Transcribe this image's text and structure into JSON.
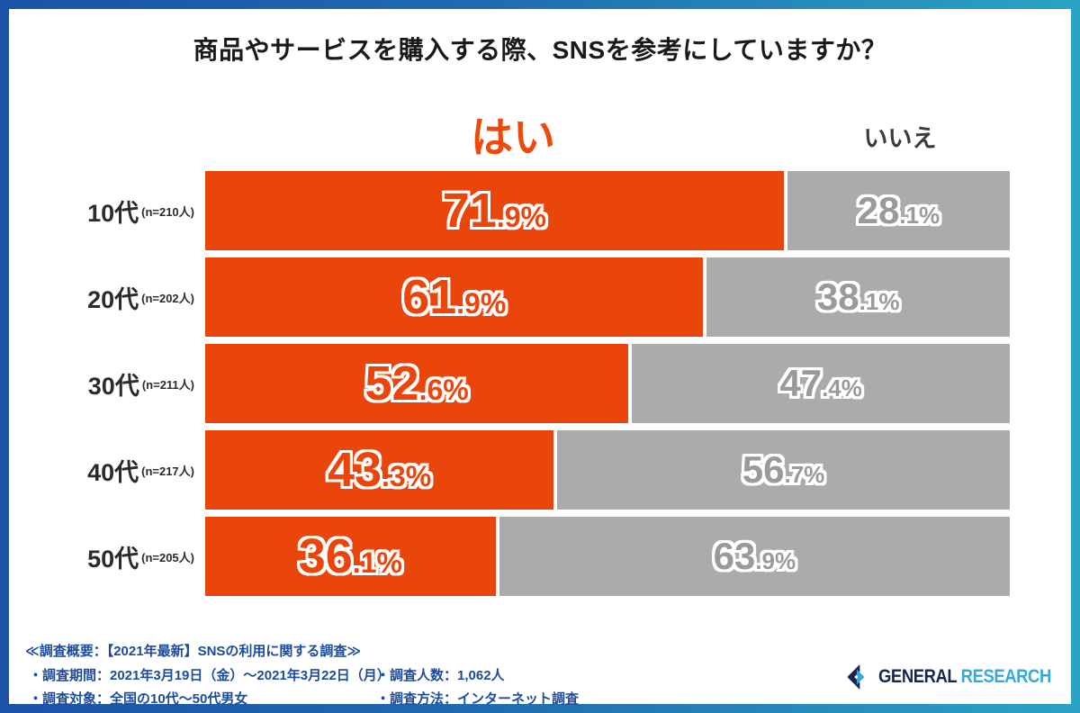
{
  "title": "商品やサービスを購入する際、SNSを参考にしていますか？",
  "legend": {
    "yes": "はい",
    "no": "いいえ"
  },
  "colors": {
    "yes_bar": "#ea450b",
    "no_bar": "#ababab",
    "yes_legend_text": "#ed4a0d",
    "no_legend_text": "#3c3c3c",
    "footer_text": "#1c4b9c",
    "frame_gradient_left": "#1b52a8",
    "frame_gradient_right": "#2ba4c4",
    "logo_navy": "#1b2550",
    "logo_blue": "#36a9dc"
  },
  "chart_data": {
    "type": "bar",
    "orientation": "horizontal",
    "stacked": true,
    "title": "商品やサービスを購入する際、SNSを参考にしていますか？",
    "categories": [
      "10代",
      "20代",
      "30代",
      "40代",
      "50代"
    ],
    "sample_sizes": [
      210,
      202,
      211,
      217,
      205
    ],
    "series": [
      {
        "name": "はい",
        "color": "#ea450b",
        "values": [
          71.9,
          61.9,
          52.6,
          43.3,
          36.1
        ]
      },
      {
        "name": "いいえ",
        "color": "#ababab",
        "values": [
          28.1,
          38.1,
          47.4,
          56.7,
          63.9
        ]
      }
    ],
    "value_unit": "%",
    "xlim": [
      0,
      100
    ],
    "legend_position": "top",
    "grid": false
  },
  "rows": [
    {
      "label": "10代",
      "n": "(n=210人)",
      "yes_big": "71",
      "yes_small": ".9%",
      "no_big": "28",
      "no_small": ".1%"
    },
    {
      "label": "20代",
      "n": "(n=202人)",
      "yes_big": "61",
      "yes_small": ".9%",
      "no_big": "38",
      "no_small": ".1%"
    },
    {
      "label": "30代",
      "n": "(n=211人)",
      "yes_big": "52",
      "yes_small": ".6%",
      "no_big": "47",
      "no_small": ".4%"
    },
    {
      "label": "40代",
      "n": "(n=217人)",
      "yes_big": "43",
      "yes_small": ".3%",
      "no_big": "56",
      "no_small": ".7%"
    },
    {
      "label": "50代",
      "n": "(n=205人)",
      "yes_big": "36",
      "yes_small": ".1%",
      "no_big": "63",
      "no_small": ".9%"
    }
  ],
  "footer": {
    "summary": "≪調査概要：【2021年最新】SNSの利用に関する調査≫",
    "period": "・調査期間：2021年3月19日（金）～2021年3月22日（月）",
    "target": "・調査対象：全国の10代～50代男女",
    "respondents": "・調査人数：1,062人",
    "method": "・調査方法：インターネット調査"
  },
  "logo": {
    "word1": "GENERAL",
    "word2": "RESEARCH"
  }
}
